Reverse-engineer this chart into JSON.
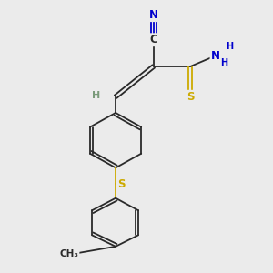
{
  "bg_color": "#ebebeb",
  "bond_color": "#2a2a2a",
  "N_color": "#0000cc",
  "S_color": "#ccaa00",
  "C_color": "#2a2a2a",
  "H_color": "#7a9a7a",
  "figsize": [
    3.0,
    3.0
  ],
  "dpi": 100,
  "xlim": [
    0.05,
    0.95
  ],
  "ylim": [
    0.02,
    0.98
  ]
}
